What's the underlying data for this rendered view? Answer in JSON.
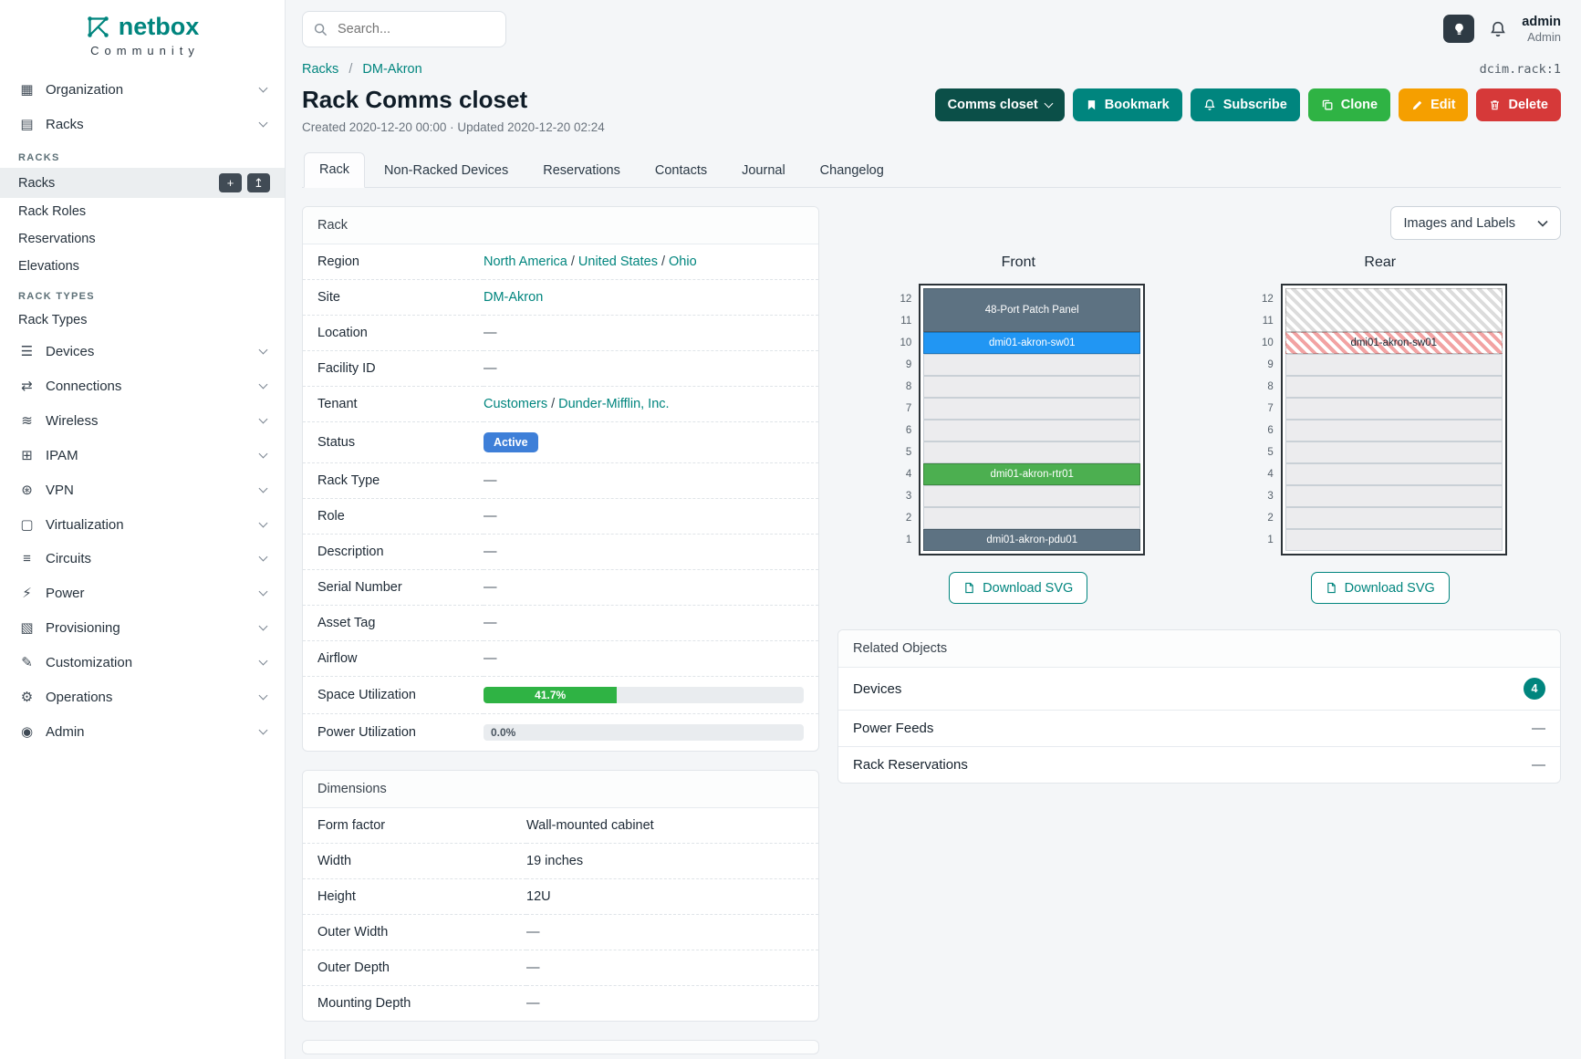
{
  "brand": {
    "name": "netbox",
    "subtitle": "Community",
    "color": "#00857e",
    "logo_icon": "netbox-logo-icon"
  },
  "topbar": {
    "search": {
      "placeholder": "Search...",
      "icon": "search-icon"
    },
    "theme_toggle_icon": "lightbulb-icon",
    "notifications_icon": "bell-icon",
    "user": {
      "name": "admin",
      "role": "Admin"
    }
  },
  "sidebar": {
    "items": [
      {
        "type": "group",
        "label": "Organization",
        "icon": "organization-icon"
      },
      {
        "type": "group",
        "label": "Racks",
        "icon": "racks-icon",
        "expanded": true
      },
      {
        "type": "heading",
        "label": "RACKS"
      },
      {
        "type": "link",
        "label": "Racks",
        "active": true,
        "buttons": [
          {
            "name": "add-button",
            "icon": "plus-icon"
          },
          {
            "name": "import-button",
            "icon": "upload-icon"
          }
        ]
      },
      {
        "type": "link",
        "label": "Rack Roles"
      },
      {
        "type": "link",
        "label": "Reservations"
      },
      {
        "type": "link",
        "label": "Elevations"
      },
      {
        "type": "heading",
        "label": "RACK TYPES"
      },
      {
        "type": "link",
        "label": "Rack Types"
      },
      {
        "type": "group",
        "label": "Devices",
        "icon": "devices-icon"
      },
      {
        "type": "group",
        "label": "Connections",
        "icon": "connections-icon"
      },
      {
        "type": "group",
        "label": "Wireless",
        "icon": "wireless-icon"
      },
      {
        "type": "group",
        "label": "IPAM",
        "icon": "ipam-icon"
      },
      {
        "type": "group",
        "label": "VPN",
        "icon": "vpn-icon"
      },
      {
        "type": "group",
        "label": "Virtualization",
        "icon": "virtualization-icon"
      },
      {
        "type": "group",
        "label": "Circuits",
        "icon": "circuits-icon"
      },
      {
        "type": "group",
        "label": "Power",
        "icon": "power-icon"
      },
      {
        "type": "group",
        "label": "Provisioning",
        "icon": "provisioning-icon"
      },
      {
        "type": "group",
        "label": "Customization",
        "icon": "customization-icon"
      },
      {
        "type": "group",
        "label": "Operations",
        "icon": "operations-icon"
      },
      {
        "type": "group",
        "label": "Admin",
        "icon": "admin-icon"
      }
    ]
  },
  "breadcrumb": {
    "items": [
      "Racks",
      "DM-Akron"
    ],
    "separator": "/"
  },
  "object_id": "dcim.rack:1",
  "page": {
    "title": "Rack Comms closet",
    "meta": "Created 2020-12-20 00:00 · Updated 2020-12-20 02:24"
  },
  "actions": {
    "context_label": "Comms closet",
    "bookmark_label": "Bookmark",
    "subscribe_label": "Subscribe",
    "clone_label": "Clone",
    "edit_label": "Edit",
    "delete_label": "Delete"
  },
  "tabs": [
    {
      "label": "Rack",
      "active": true
    },
    {
      "label": "Non-Racked Devices"
    },
    {
      "label": "Reservations"
    },
    {
      "label": "Contacts"
    },
    {
      "label": "Journal"
    },
    {
      "label": "Changelog"
    }
  ],
  "rack_card": {
    "title": "Rack",
    "rows": [
      {
        "label": "Region",
        "type": "links",
        "parts": [
          "North America",
          "United States",
          "Ohio"
        ]
      },
      {
        "label": "Site",
        "type": "links",
        "parts": [
          "DM-Akron"
        ]
      },
      {
        "label": "Location",
        "type": "dash",
        "value": "—"
      },
      {
        "label": "Facility ID",
        "type": "dash",
        "value": "—"
      },
      {
        "label": "Tenant",
        "type": "links",
        "parts": [
          "Customers",
          "Dunder-Mifflin, Inc."
        ]
      },
      {
        "label": "Status",
        "type": "badge",
        "value": "Active",
        "color": "#3e7fd8"
      },
      {
        "label": "Rack Type",
        "type": "dash",
        "value": "—"
      },
      {
        "label": "Role",
        "type": "dash",
        "value": "—"
      },
      {
        "label": "Description",
        "type": "dash",
        "value": "—"
      },
      {
        "label": "Serial Number",
        "type": "dash",
        "value": "—"
      },
      {
        "label": "Asset Tag",
        "type": "dash",
        "value": "—"
      },
      {
        "label": "Airflow",
        "type": "dash",
        "value": "—"
      },
      {
        "label": "Space Utilization",
        "type": "progress",
        "value": "41.7%",
        "percent": 41.7,
        "color": "#2fb344"
      },
      {
        "label": "Power Utilization",
        "type": "progress",
        "value": "0.0%",
        "percent": 0,
        "color": "#2fb344"
      }
    ]
  },
  "dimensions_card": {
    "title": "Dimensions",
    "rows": [
      {
        "label": "Form factor",
        "type": "text",
        "value": "Wall-mounted cabinet"
      },
      {
        "label": "Width",
        "type": "text",
        "value": "19 inches"
      },
      {
        "label": "Height",
        "type": "text",
        "value": "12U"
      },
      {
        "label": "Outer Width",
        "type": "dash",
        "value": "—"
      },
      {
        "label": "Outer Depth",
        "type": "dash",
        "value": "—"
      },
      {
        "label": "Mounting Depth",
        "type": "dash",
        "value": "—"
      }
    ]
  },
  "elevations": {
    "toolbar_button": "Images and Labels",
    "download_button": "Download SVG",
    "unit_count": 12,
    "views": [
      {
        "title": "Front",
        "devices": [
          {
            "name": "48-Port Patch Panel",
            "top_unit": 12,
            "u_height": 2,
            "color": "#5d7282",
            "label_color": "#ffffff",
            "hatch": false
          },
          {
            "name": "dmi01-akron-sw01",
            "top_unit": 10,
            "u_height": 1,
            "color": "#2196f3",
            "label_color": "#ffffff",
            "hatch": false
          },
          {
            "name": "dmi01-akron-rtr01",
            "top_unit": 4,
            "u_height": 1,
            "color": "#4caf50",
            "label_color": "#ffffff",
            "hatch": false
          },
          {
            "name": "dmi01-akron-pdu01",
            "top_unit": 1,
            "u_height": 1,
            "color": "#5d7282",
            "label_color": "#ffffff",
            "hatch": false
          }
        ]
      },
      {
        "title": "Rear",
        "devices": [
          {
            "name": "",
            "top_unit": 12,
            "u_height": 2,
            "color": "#dcdcdc",
            "label_color": "#1d2935",
            "hatch": true
          },
          {
            "name": "dmi01-akron-sw01",
            "top_unit": 10,
            "u_height": 1,
            "color": "#f2a3a3",
            "label_color": "#1d2935",
            "hatch": true
          }
        ]
      }
    ]
  },
  "related_objects": {
    "title": "Related Objects",
    "rows": [
      {
        "label": "Devices",
        "badge": "4"
      },
      {
        "label": "Power Feeds",
        "value": "—"
      },
      {
        "label": "Rack Reservations",
        "value": "—"
      }
    ]
  },
  "colors": {
    "brand_teal": "#00857e",
    "context_button": "#0b4f48",
    "button_teal": "#00857e",
    "button_green": "#2fb344",
    "button_yellow": "#f59f00",
    "button_red": "#d63939",
    "status_active": "#3e7fd8",
    "progress_green": "#2fb344"
  }
}
